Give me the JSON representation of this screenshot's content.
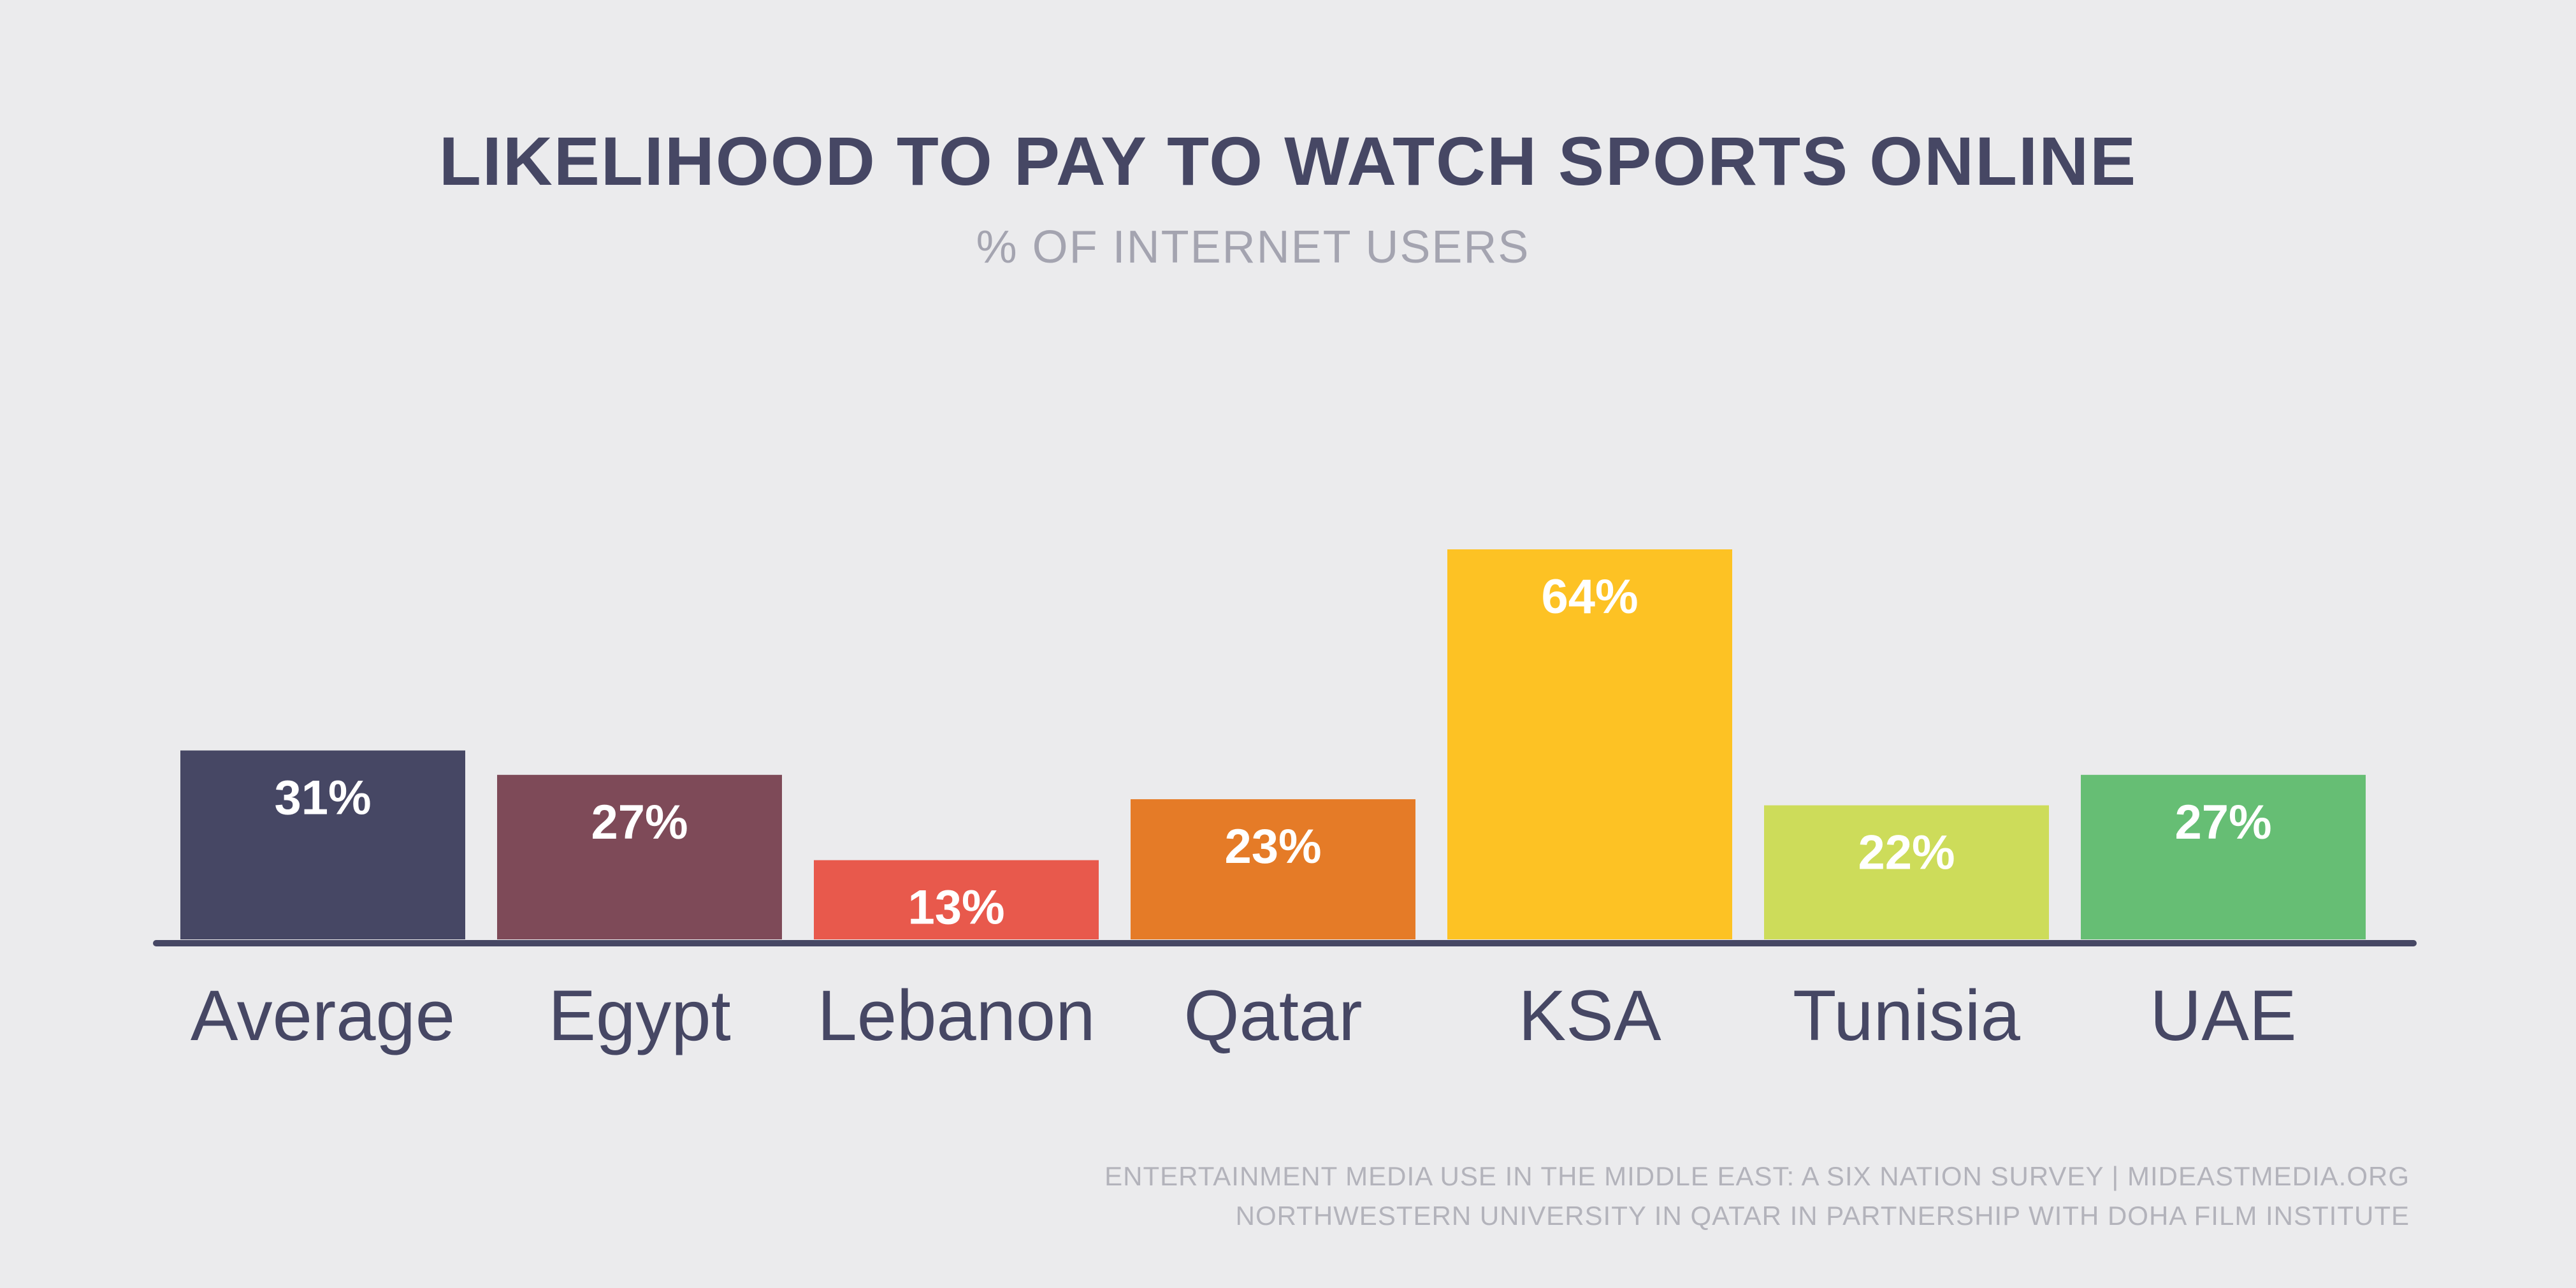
{
  "chart_data": {
    "type": "bar",
    "title": "LIKELIHOOD TO PAY TO WATCH SPORTS ONLINE",
    "subtitle": "% OF INTERNET USERS",
    "categories": [
      "Average",
      "Egypt",
      "Lebanon",
      "Qatar",
      "KSA",
      "Tunisia",
      "UAE"
    ],
    "values": [
      31,
      27,
      13,
      23,
      64,
      22,
      27
    ],
    "value_labels": [
      "31%",
      "27%",
      "13%",
      "23%",
      "64%",
      "22%",
      "27%"
    ],
    "colors": [
      "#464764",
      "#7e4a58",
      "#e8594c",
      "#e57b27",
      "#fdc224",
      "#cddc5a",
      "#66be74"
    ],
    "ylim": [
      0,
      64
    ],
    "grid": false,
    "legend": "none"
  },
  "footer": {
    "line1": "ENTERTAINMENT MEDIA USE IN THE MIDDLE EAST: A SIX NATION SURVEY | MIDEASTMEDIA.ORG",
    "line2": "NORTHWESTERN UNIVERSITY IN QATAR IN PARTNERSHIP WITH DOHA FILM INSTITUTE"
  },
  "colors": {
    "background": "#ebebed",
    "text": "#464764",
    "axis": "#464764"
  }
}
